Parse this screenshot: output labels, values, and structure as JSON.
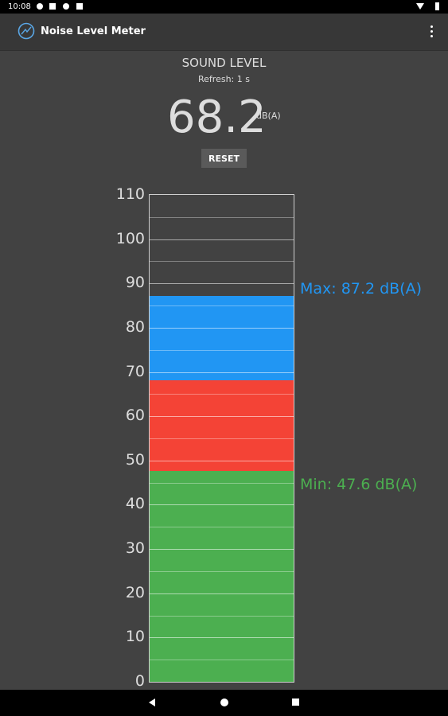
{
  "status_bar": {
    "time": "10:08"
  },
  "app_bar": {
    "title": "Noise Level Meter"
  },
  "sound": {
    "title": "SOUND LEVEL",
    "refresh": "Refresh: 1 s",
    "value": "68.2",
    "unit": "dB(A)",
    "reset_label": "RESET"
  },
  "meter": {
    "scale_min": 0,
    "scale_max": 110,
    "ticks": [
      "0",
      "10",
      "20",
      "30",
      "40",
      "50",
      "60",
      "70",
      "80",
      "90",
      "100",
      "110"
    ],
    "min_value": 47.6,
    "current_value": 68.2,
    "max_value": 87.2,
    "max_label": "Max: 87.2 dB(A)",
    "min_label": "Min: 47.6 dB(A)",
    "colors": {
      "green": "#4caf50",
      "red": "#f44336",
      "blue": "#2196f3"
    }
  }
}
